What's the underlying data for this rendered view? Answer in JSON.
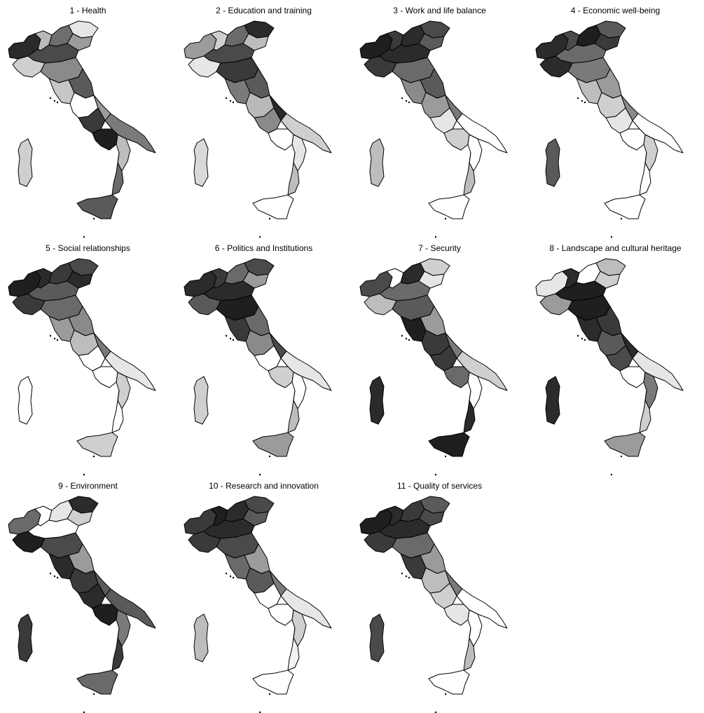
{
  "figure": {
    "panels": [
      {
        "title": "1 - Health",
        "shades": {
          "north": [
            "#2b2b2b",
            "#b9b9b9",
            "#6e6e6e",
            "#e6e6e6",
            "#9b9b9b",
            "#4a4a4a",
            "#cfcfcf"
          ],
          "center": [
            "#8a8a8a",
            "#c7c7c7",
            "#5a5a5a",
            "#ffffff",
            "#9b9b9b"
          ],
          "south": [
            "#3a3a3a",
            "#7a7a7a",
            "#1f1f1f",
            "#bdbdbd",
            "#6a6a6a"
          ],
          "sicily": "#5a5a5a",
          "sardinia": "#cfcfcf"
        }
      },
      {
        "title": "2 - Education and training",
        "shades": {
          "north": [
            "#9b9b9b",
            "#cfcfcf",
            "#6a6a6a",
            "#2b2b2b",
            "#bdbdbd",
            "#4a4a4a",
            "#e6e6e6"
          ],
          "center": [
            "#3a3a3a",
            "#7a7a7a",
            "#5a5a5a",
            "#b9b9b9",
            "#2b2b2b"
          ],
          "south": [
            "#8a8a8a",
            "#cfcfcf",
            "#ffffff",
            "#e6e6e6",
            "#bdbdbd"
          ],
          "sicily": "#ffffff",
          "sardinia": "#d9d9d9"
        }
      },
      {
        "title": "3 - Work and life balance",
        "shades": {
          "north": [
            "#1f1f1f",
            "#3a3a3a",
            "#2b2b2b",
            "#4a4a4a",
            "#5a5a5a",
            "#2b2b2b",
            "#3a3a3a"
          ],
          "center": [
            "#6a6a6a",
            "#8a8a8a",
            "#5a5a5a",
            "#9b9b9b",
            "#7a7a7a"
          ],
          "south": [
            "#e6e6e6",
            "#ffffff",
            "#cfcfcf",
            "#ffffff",
            "#bdbdbd"
          ],
          "sicily": "#ffffff",
          "sardinia": "#bdbdbd"
        }
      },
      {
        "title": "4 - Economic well-being",
        "shades": {
          "north": [
            "#2b2b2b",
            "#4a4a4a",
            "#1f1f1f",
            "#5a5a5a",
            "#3a3a3a",
            "#6a6a6a",
            "#2b2b2b"
          ],
          "center": [
            "#7a7a7a",
            "#bdbdbd",
            "#9b9b9b",
            "#cfcfcf",
            "#8a8a8a"
          ],
          "south": [
            "#e6e6e6",
            "#ffffff",
            "#ffffff",
            "#cfcfcf",
            "#ffffff"
          ],
          "sicily": "#ffffff",
          "sardinia": "#5a5a5a"
        }
      },
      {
        "title": "5 - Social relationships",
        "shades": {
          "north": [
            "#1f1f1f",
            "#2b2b2b",
            "#3a3a3a",
            "#4a4a4a",
            "#2b2b2b",
            "#5a5a5a",
            "#3a3a3a"
          ],
          "center": [
            "#6a6a6a",
            "#9b9b9b",
            "#8a8a8a",
            "#bdbdbd",
            "#7a7a7a"
          ],
          "south": [
            "#ffffff",
            "#e6e6e6",
            "#ffffff",
            "#cfcfcf",
            "#ffffff"
          ],
          "sicily": "#cfcfcf",
          "sardinia": "#ffffff"
        }
      },
      {
        "title": "6 - Politics and Institutions",
        "shades": {
          "north": [
            "#2b2b2b",
            "#3a3a3a",
            "#6a6a6a",
            "#4a4a4a",
            "#9b9b9b",
            "#2b2b2b",
            "#5a5a5a"
          ],
          "center": [
            "#1f1f1f",
            "#3a3a3a",
            "#6a6a6a",
            "#8a8a8a",
            "#4a4a4a"
          ],
          "south": [
            "#ffffff",
            "#e6e6e6",
            "#cfcfcf",
            "#ffffff",
            "#bdbdbd"
          ],
          "sicily": "#9b9b9b",
          "sardinia": "#cfcfcf"
        }
      },
      {
        "title": "7 - Security",
        "shades": {
          "north": [
            "#4a4a4a",
            "#ffffff",
            "#2b2b2b",
            "#cfcfcf",
            "#e6e6e6",
            "#6a6a6a",
            "#bdbdbd"
          ],
          "center": [
            "#5a5a5a",
            "#1f1f1f",
            "#9b9b9b",
            "#3a3a3a",
            "#7a7a7a"
          ],
          "south": [
            "#3a3a3a",
            "#cfcfcf",
            "#6a6a6a",
            "#ffffff",
            "#2b2b2b"
          ],
          "sicily": "#1f1f1f",
          "sardinia": "#2b2b2b"
        }
      },
      {
        "title": "8 - Landscape and cultural heritage",
        "shades": {
          "north": [
            "#e6e6e6",
            "#2b2b2b",
            "#ffffff",
            "#bdbdbd",
            "#cfcfcf",
            "#1f1f1f",
            "#9b9b9b"
          ],
          "center": [
            "#1f1f1f",
            "#2b2b2b",
            "#3a3a3a",
            "#5a5a5a",
            "#2b2b2b"
          ],
          "south": [
            "#4a4a4a",
            "#e6e6e6",
            "#ffffff",
            "#7a7a7a",
            "#cfcfcf"
          ],
          "sicily": "#9b9b9b",
          "sardinia": "#2b2b2b"
        }
      },
      {
        "title": "9 - Environment",
        "shades": {
          "north": [
            "#6a6a6a",
            "#ffffff",
            "#e6e6e6",
            "#2b2b2b",
            "#cfcfcf",
            "#ffffff",
            "#1f1f1f"
          ],
          "center": [
            "#4a4a4a",
            "#2b2b2b",
            "#9b9b9b",
            "#3a3a3a",
            "#5a5a5a"
          ],
          "south": [
            "#2b2b2b",
            "#5a5a5a",
            "#1f1f1f",
            "#7a7a7a",
            "#3a3a3a"
          ],
          "sicily": "#6a6a6a",
          "sardinia": "#3a3a3a"
        }
      },
      {
        "title": "10 - Research and innovation",
        "shades": {
          "north": [
            "#3a3a3a",
            "#1f1f1f",
            "#2b2b2b",
            "#4a4a4a",
            "#5a5a5a",
            "#2b2b2b",
            "#3a3a3a"
          ],
          "center": [
            "#4a4a4a",
            "#6a6a6a",
            "#9b9b9b",
            "#5a5a5a",
            "#7a7a7a"
          ],
          "south": [
            "#ffffff",
            "#e6e6e6",
            "#ffffff",
            "#cfcfcf",
            "#f2f2f2"
          ],
          "sicily": "#ffffff",
          "sardinia": "#bdbdbd"
        }
      },
      {
        "title": "11 - Quality of services",
        "shades": {
          "north": [
            "#1f1f1f",
            "#2b2b2b",
            "#3a3a3a",
            "#5a5a5a",
            "#4a4a4a",
            "#2b2b2b",
            "#3a3a3a"
          ],
          "center": [
            "#6a6a6a",
            "#3a3a3a",
            "#9b9b9b",
            "#bdbdbd",
            "#7a7a7a"
          ],
          "south": [
            "#cfcfcf",
            "#ffffff",
            "#e6e6e6",
            "#ffffff",
            "#bdbdbd"
          ],
          "sicily": "#ffffff",
          "sardinia": "#4a4a4a"
        }
      }
    ]
  }
}
